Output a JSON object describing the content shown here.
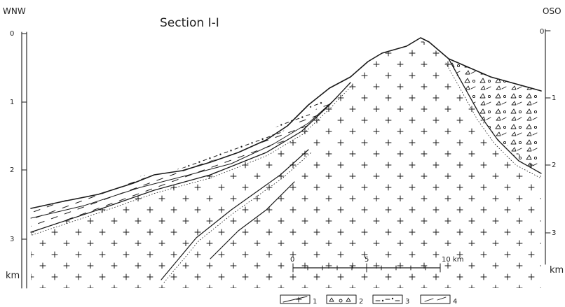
{
  "title": "Section I-I",
  "left_direction": "WNW",
  "right_direction": "OSO",
  "depth_unit": "km",
  "left_axis_ticks": [
    "0",
    "1",
    "2",
    "3"
  ],
  "right_axis_ticks": [
    "0",
    "1",
    "2",
    "3"
  ],
  "scale_bar": {
    "ticks": [
      "0",
      "5",
      "10 km"
    ]
  },
  "legend": [
    {
      "number": "1"
    },
    {
      "number": "2"
    },
    {
      "number": "3"
    },
    {
      "number": "4"
    }
  ]
}
